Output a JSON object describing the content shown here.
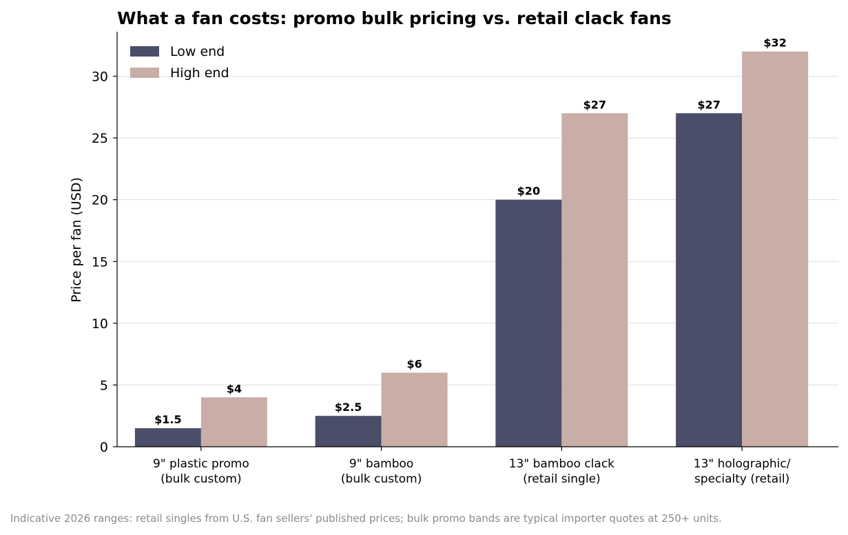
{
  "chart_data": {
    "type": "bar",
    "title": "What a fan costs: promo bulk pricing vs. retail clack fans",
    "xlabel": "",
    "ylabel": "Price per fan (USD)",
    "ylim": [
      0,
      33.6
    ],
    "yticks": [
      0,
      5,
      10,
      15,
      20,
      25,
      30
    ],
    "grid": "horizontal",
    "legend_position": "top-left",
    "categories": [
      [
        "9\" plastic promo",
        "(bulk custom)"
      ],
      [
        "9\" bamboo",
        "(bulk custom)"
      ],
      [
        "13\" bamboo clack",
        "(retail single)"
      ],
      [
        "13\" holographic/",
        "specialty (retail)"
      ]
    ],
    "series": [
      {
        "name": "Low end",
        "color": "#4a4e69",
        "values": [
          1.5,
          2.5,
          20,
          27
        ],
        "labels": [
          "$1.5",
          "$2.5",
          "$20",
          "$27"
        ]
      },
      {
        "name": "High end",
        "color": "#c9ada7",
        "values": [
          4,
          6,
          27,
          32
        ],
        "labels": [
          "$4",
          "$6",
          "$27",
          "$32"
        ]
      }
    ],
    "footnote": "Indicative 2026 ranges: retail singles from U.S. fan sellers' published prices; bulk promo bands are typical importer quotes at 250+ units."
  }
}
